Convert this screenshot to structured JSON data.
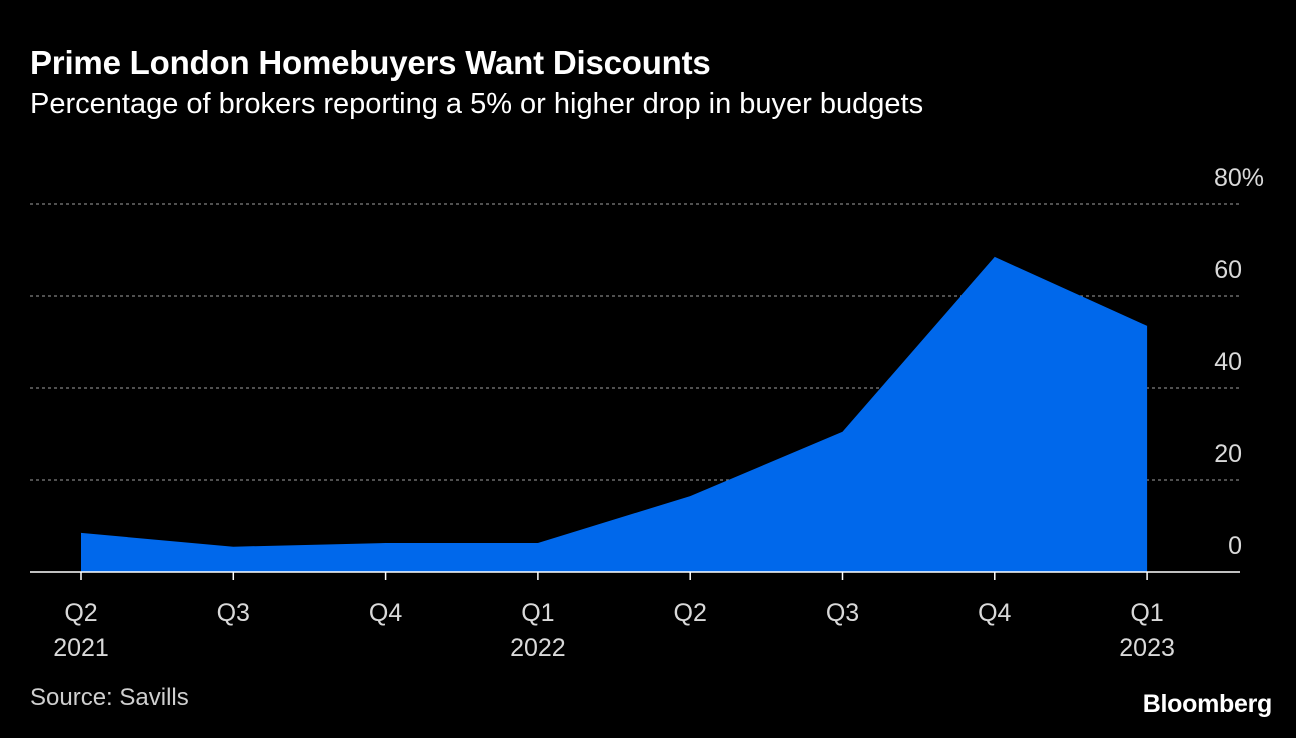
{
  "colors": {
    "background": "#000000",
    "area": "#0068eb",
    "grid": "#7f7f7f",
    "axis": "#ffffff",
    "tick_text": "#d9d9d9"
  },
  "chart_data": {
    "type": "area",
    "title": "Prime London Homebuyers Want Discounts",
    "subtitle": "Percentage of brokers reporting a 5% or higher drop in buyer budgets",
    "categories": [
      "Q2 2021",
      "Q3 2021",
      "Q4 2021",
      "Q1 2022",
      "Q2 2022",
      "Q3 2022",
      "Q4 2022",
      "Q1 2023"
    ],
    "x_tick_labels": [
      {
        "quarter": "Q2",
        "year": "2021"
      },
      {
        "quarter": "Q3",
        "year": ""
      },
      {
        "quarter": "Q4",
        "year": ""
      },
      {
        "quarter": "Q1",
        "year": "2022"
      },
      {
        "quarter": "Q2",
        "year": ""
      },
      {
        "quarter": "Q3",
        "year": ""
      },
      {
        "quarter": "Q4",
        "year": ""
      },
      {
        "quarter": "Q1",
        "year": "2023"
      }
    ],
    "values": [
      8.5,
      5.5,
      6.3,
      6.3,
      16.5,
      30.5,
      68.5,
      53.5
    ],
    "ylim": [
      0,
      80
    ],
    "y_ticks": [
      0,
      20,
      40,
      60,
      80
    ],
    "y_tick_labels": [
      "0",
      "20",
      "40",
      "60",
      "80%"
    ],
    "y_axis_side": "right",
    "grid": true,
    "xlabel": "",
    "ylabel": ""
  },
  "footer": {
    "source": "Source: Savills",
    "brand": "Bloomberg"
  }
}
